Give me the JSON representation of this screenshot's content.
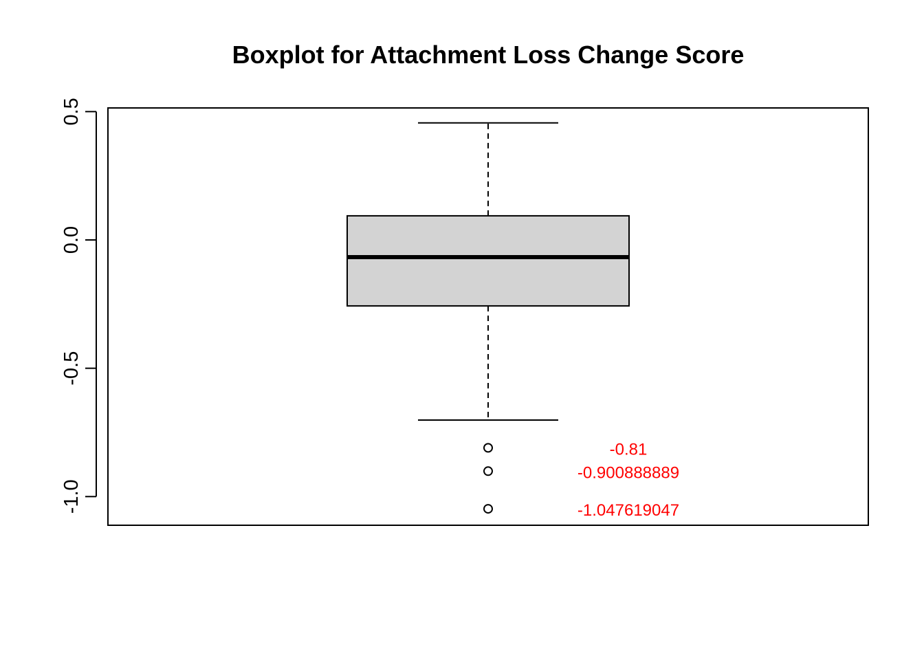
{
  "chart_data": {
    "type": "boxplot",
    "title": "Boxplot for Attachment Loss Change Score",
    "xlabel": "",
    "ylabel": "",
    "ylim": [
      -1.11,
      0.51
    ],
    "yticks": [
      -1.0,
      -0.5,
      0.0,
      0.5
    ],
    "ytick_labels": [
      "-1.0",
      "-0.5",
      "0.0",
      "0.5"
    ],
    "grid": false,
    "box": {
      "whisker_low": -0.702,
      "q1": -0.257,
      "median": -0.067,
      "q3": 0.094,
      "whisker_high": 0.456
    },
    "outliers": [
      {
        "value": -0.81,
        "label": "-0.81"
      },
      {
        "value": -0.900888889,
        "label": "-0.900888889"
      },
      {
        "value": -1.047619047,
        "label": "-1.047619047"
      }
    ],
    "colors": {
      "box_fill": "#d3d3d3",
      "outlier_label": "#ff0000",
      "line": "#000000"
    }
  }
}
